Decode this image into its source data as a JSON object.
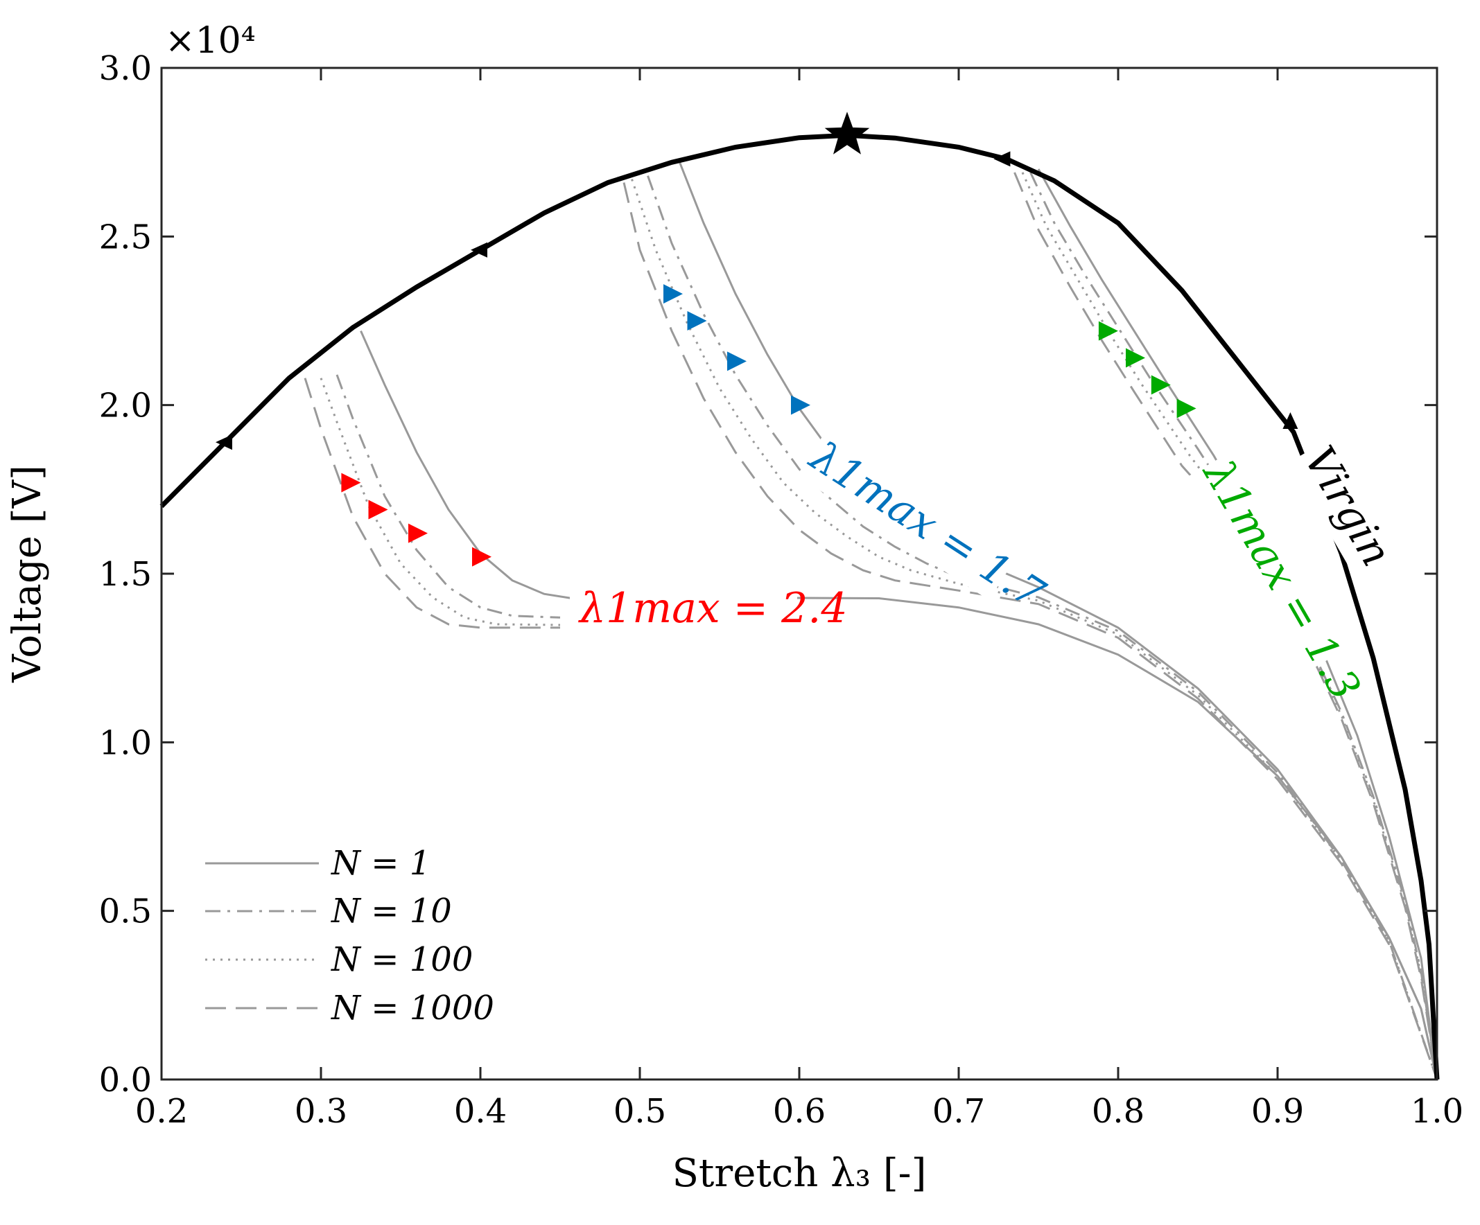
{
  "chart_data": {
    "type": "line",
    "title": "",
    "xlabel": "Stretch λ₃ [-]",
    "ylabel": "Voltage [V]",
    "y_exponent_label": "×10⁴",
    "y_scale": 10000,
    "xlim": [
      0.2,
      1.0
    ],
    "ylim": [
      0,
      30000
    ],
    "grid": false,
    "x_ticks": [
      0.2,
      0.3,
      0.4,
      0.5,
      0.6,
      0.7,
      0.8,
      0.9,
      1.0
    ],
    "x_tick_labels": [
      "0.2",
      "0.3",
      "0.4",
      "0.5",
      "0.6",
      "0.7",
      "0.8",
      "0.9",
      "1.0"
    ],
    "y_ticks": [
      0,
      5000,
      10000,
      15000,
      20000,
      25000,
      30000
    ],
    "y_tick_labels": [
      "0.0",
      "0.5",
      "1.0",
      "1.5",
      "2.0",
      "2.5",
      "3.0"
    ],
    "legend": {
      "position": "bottom-left",
      "entries": [
        {
          "label": "N = 1",
          "style": "solid"
        },
        {
          "label": "N = 10",
          "style": "dashdot"
        },
        {
          "label": "N = 100",
          "style": "dotted"
        },
        {
          "label": "N = 1000",
          "style": "dashed"
        }
      ]
    },
    "virgin": {
      "label": "Virgin",
      "color": "#000000",
      "peak": {
        "x": 0.63,
        "y": 28000
      },
      "x": [
        0.2,
        0.24,
        0.28,
        0.32,
        0.36,
        0.4,
        0.44,
        0.48,
        0.52,
        0.56,
        0.6,
        0.63,
        0.66,
        0.7,
        0.73,
        0.76,
        0.8,
        0.84,
        0.88,
        0.91,
        0.94,
        0.96,
        0.98,
        0.99,
        0.995,
        1.0
      ],
      "y": [
        17000,
        18900,
        20800,
        22300,
        23500,
        24600,
        25700,
        26600,
        27200,
        27650,
        27930,
        28000,
        27920,
        27650,
        27300,
        26650,
        25400,
        23400,
        21000,
        19200,
        15600,
        12500,
        8600,
        5900,
        4000,
        0
      ],
      "arrows": [
        {
          "x": 0.24,
          "y": 18900,
          "dir": "left"
        },
        {
          "x": 0.4,
          "y": 24600,
          "dir": "left"
        },
        {
          "x": 0.728,
          "y": 27300,
          "dir": "left"
        },
        {
          "x": 0.908,
          "y": 19500,
          "dir": "up"
        }
      ]
    },
    "annotations": [
      {
        "text": "λ1max = 2.4",
        "color": "#ff0000"
      },
      {
        "text": "λ1max = 1.7",
        "color": "#0072bd"
      },
      {
        "text": "λ1max = 1.3",
        "color": "#00aa00"
      },
      {
        "text": "Virgin",
        "color": "#000000"
      }
    ],
    "series": [
      {
        "name": "N = 1",
        "group": "λ1max = 2.4",
        "style": "solid",
        "color": "#999999",
        "x": [
          0.325,
          0.34,
          0.36,
          0.38,
          0.4,
          0.42,
          0.44,
          0.46,
          0.5,
          0.55,
          0.6,
          0.65,
          0.7,
          0.75,
          0.8,
          0.85,
          0.9,
          0.94,
          0.97,
          0.99,
          1.0
        ],
        "y": [
          22200,
          20600,
          18600,
          16900,
          15600,
          14800,
          14400,
          14250,
          14200,
          14250,
          14280,
          14270,
          14000,
          13500,
          12600,
          11200,
          9000,
          6600,
          4200,
          2100,
          0
        ]
      },
      {
        "name": "N = 10",
        "group": "λ1max = 2.4",
        "style": "dashdot",
        "color": "#999999",
        "x": [
          0.31,
          0.32,
          0.34,
          0.36,
          0.38,
          0.4,
          0.42,
          0.45
        ],
        "y": [
          20900,
          19600,
          17300,
          15700,
          14600,
          14000,
          13750,
          13700
        ]
      },
      {
        "name": "N = 100",
        "group": "λ1max = 2.4",
        "style": "dotted",
        "color": "#999999",
        "x": [
          0.3,
          0.31,
          0.33,
          0.35,
          0.37,
          0.39,
          0.41,
          0.45
        ],
        "y": [
          20800,
          19500,
          17000,
          15300,
          14300,
          13700,
          13500,
          13480
        ]
      },
      {
        "name": "N = 1000",
        "group": "λ1max = 2.4",
        "style": "dashed",
        "color": "#999999",
        "x": [
          0.29,
          0.3,
          0.32,
          0.34,
          0.36,
          0.38,
          0.4,
          0.45
        ],
        "y": [
          20800,
          19300,
          16700,
          15000,
          14000,
          13500,
          13400,
          13400
        ]
      },
      {
        "name": "N = 1",
        "group": "λ1max = 1.7",
        "style": "solid",
        "color": "#999999",
        "x": [
          0.525,
          0.54,
          0.56,
          0.58,
          0.6,
          0.62,
          0.64,
          0.66,
          0.68,
          0.7,
          0.72,
          0.75,
          0.8,
          0.85,
          0.9,
          0.94,
          0.97,
          0.99,
          1.0
        ],
        "y": [
          27200,
          25400,
          23300,
          21500,
          19900,
          18600,
          17600,
          16800,
          16100,
          15600,
          15200,
          14600,
          13400,
          11600,
          9200,
          6600,
          4200,
          2100,
          0
        ]
      },
      {
        "name": "N = 10",
        "group": "λ1max = 1.7",
        "style": "dashdot",
        "color": "#999999",
        "x": [
          0.505,
          0.52,
          0.54,
          0.56,
          0.58,
          0.6,
          0.62,
          0.64,
          0.66,
          0.68,
          0.7,
          0.75,
          0.8,
          0.85,
          0.9,
          0.94,
          0.97,
          1.0
        ],
        "y": [
          26800,
          24800,
          22700,
          20900,
          19400,
          18100,
          17200,
          16400,
          15800,
          15300,
          14900,
          14300,
          13300,
          11500,
          9100,
          6500,
          4100,
          0
        ]
      },
      {
        "name": "N = 100",
        "group": "λ1max = 1.7",
        "style": "dotted",
        "color": "#999999",
        "x": [
          0.495,
          0.51,
          0.53,
          0.55,
          0.57,
          0.59,
          0.61,
          0.63,
          0.65,
          0.67,
          0.7,
          0.75,
          0.8,
          0.85,
          0.9,
          0.94,
          0.97,
          1.0
        ],
        "y": [
          26700,
          24600,
          22400,
          20500,
          19000,
          17700,
          16800,
          16100,
          15500,
          15100,
          14700,
          14200,
          13200,
          11400,
          9000,
          6500,
          4100,
          0
        ]
      },
      {
        "name": "N = 1000",
        "group": "λ1max = 1.7",
        "style": "dashed",
        "color": "#999999",
        "x": [
          0.49,
          0.5,
          0.52,
          0.54,
          0.56,
          0.58,
          0.6,
          0.62,
          0.64,
          0.66,
          0.7,
          0.75,
          0.8,
          0.85,
          0.9,
          0.94,
          0.97,
          1.0
        ],
        "y": [
          26600,
          24600,
          22200,
          20200,
          18600,
          17300,
          16300,
          15600,
          15100,
          14800,
          14500,
          14100,
          13100,
          11300,
          8900,
          6400,
          4000,
          0
        ]
      },
      {
        "name": "N = 1",
        "group": "λ1max = 1.3",
        "style": "solid",
        "color": "#999999",
        "x": [
          0.75,
          0.77,
          0.79,
          0.81,
          0.83,
          0.86,
          0.9,
          0.93,
          0.95,
          0.97,
          0.99,
          1.0
        ],
        "y": [
          27000,
          25300,
          23700,
          22200,
          20700,
          18500,
          15200,
          12500,
          10200,
          7200,
          3600,
          0
        ]
      },
      {
        "name": "N = 10",
        "group": "λ1max = 1.3",
        "style": "dashdot",
        "color": "#999999",
        "x": [
          0.745,
          0.76,
          0.78,
          0.8,
          0.82,
          0.85,
          0.88,
          0.92,
          0.94,
          0.96,
          0.98,
          0.99,
          1.0
        ],
        "y": [
          26900,
          25400,
          23800,
          22300,
          20800,
          18700,
          16500,
          12900,
          10900,
          8400,
          5300,
          3200,
          0
        ]
      },
      {
        "name": "N = 100",
        "group": "λ1max = 1.3",
        "style": "dotted",
        "color": "#999999",
        "x": [
          0.74,
          0.755,
          0.775,
          0.795,
          0.815,
          0.845,
          0.88,
          0.92,
          0.94,
          0.96,
          0.98,
          0.99,
          1.0
        ],
        "y": [
          26900,
          25300,
          23700,
          22100,
          20600,
          18500,
          16300,
          12800,
          10800,
          8300,
          5200,
          3100,
          0
        ]
      },
      {
        "name": "N = 1000",
        "group": "λ1max = 1.3",
        "style": "dashed",
        "color": "#999999",
        "x": [
          0.735,
          0.75,
          0.77,
          0.79,
          0.81,
          0.84,
          0.88,
          0.92,
          0.94,
          0.96,
          0.98,
          0.99,
          1.0
        ],
        "y": [
          26900,
          25200,
          23500,
          21900,
          20400,
          18200,
          16100,
          12700,
          10700,
          8200,
          5100,
          3000,
          0
        ]
      }
    ],
    "markers": [
      {
        "group": "λ1max = 2.4",
        "color": "#ff0000",
        "x": 0.4,
        "y": 15500
      },
      {
        "group": "λ1max = 2.4",
        "color": "#ff0000",
        "x": 0.36,
        "y": 16200
      },
      {
        "group": "λ1max = 2.4",
        "color": "#ff0000",
        "x": 0.335,
        "y": 16900
      },
      {
        "group": "λ1max = 2.4",
        "color": "#ff0000",
        "x": 0.318,
        "y": 17700
      },
      {
        "group": "λ1max = 1.7",
        "color": "#0072bd",
        "x": 0.6,
        "y": 20000
      },
      {
        "group": "λ1max = 1.7",
        "color": "#0072bd",
        "x": 0.56,
        "y": 21300
      },
      {
        "group": "λ1max = 1.7",
        "color": "#0072bd",
        "x": 0.535,
        "y": 22500
      },
      {
        "group": "λ1max = 1.7",
        "color": "#0072bd",
        "x": 0.52,
        "y": 23300
      },
      {
        "group": "λ1max = 1.3",
        "color": "#00aa00",
        "x": 0.842,
        "y": 19900
      },
      {
        "group": "λ1max = 1.3",
        "color": "#00aa00",
        "x": 0.826,
        "y": 20600
      },
      {
        "group": "λ1max = 1.3",
        "color": "#00aa00",
        "x": 0.81,
        "y": 21400
      },
      {
        "group": "λ1max = 1.3",
        "color": "#00aa00",
        "x": 0.793,
        "y": 22200
      }
    ]
  }
}
